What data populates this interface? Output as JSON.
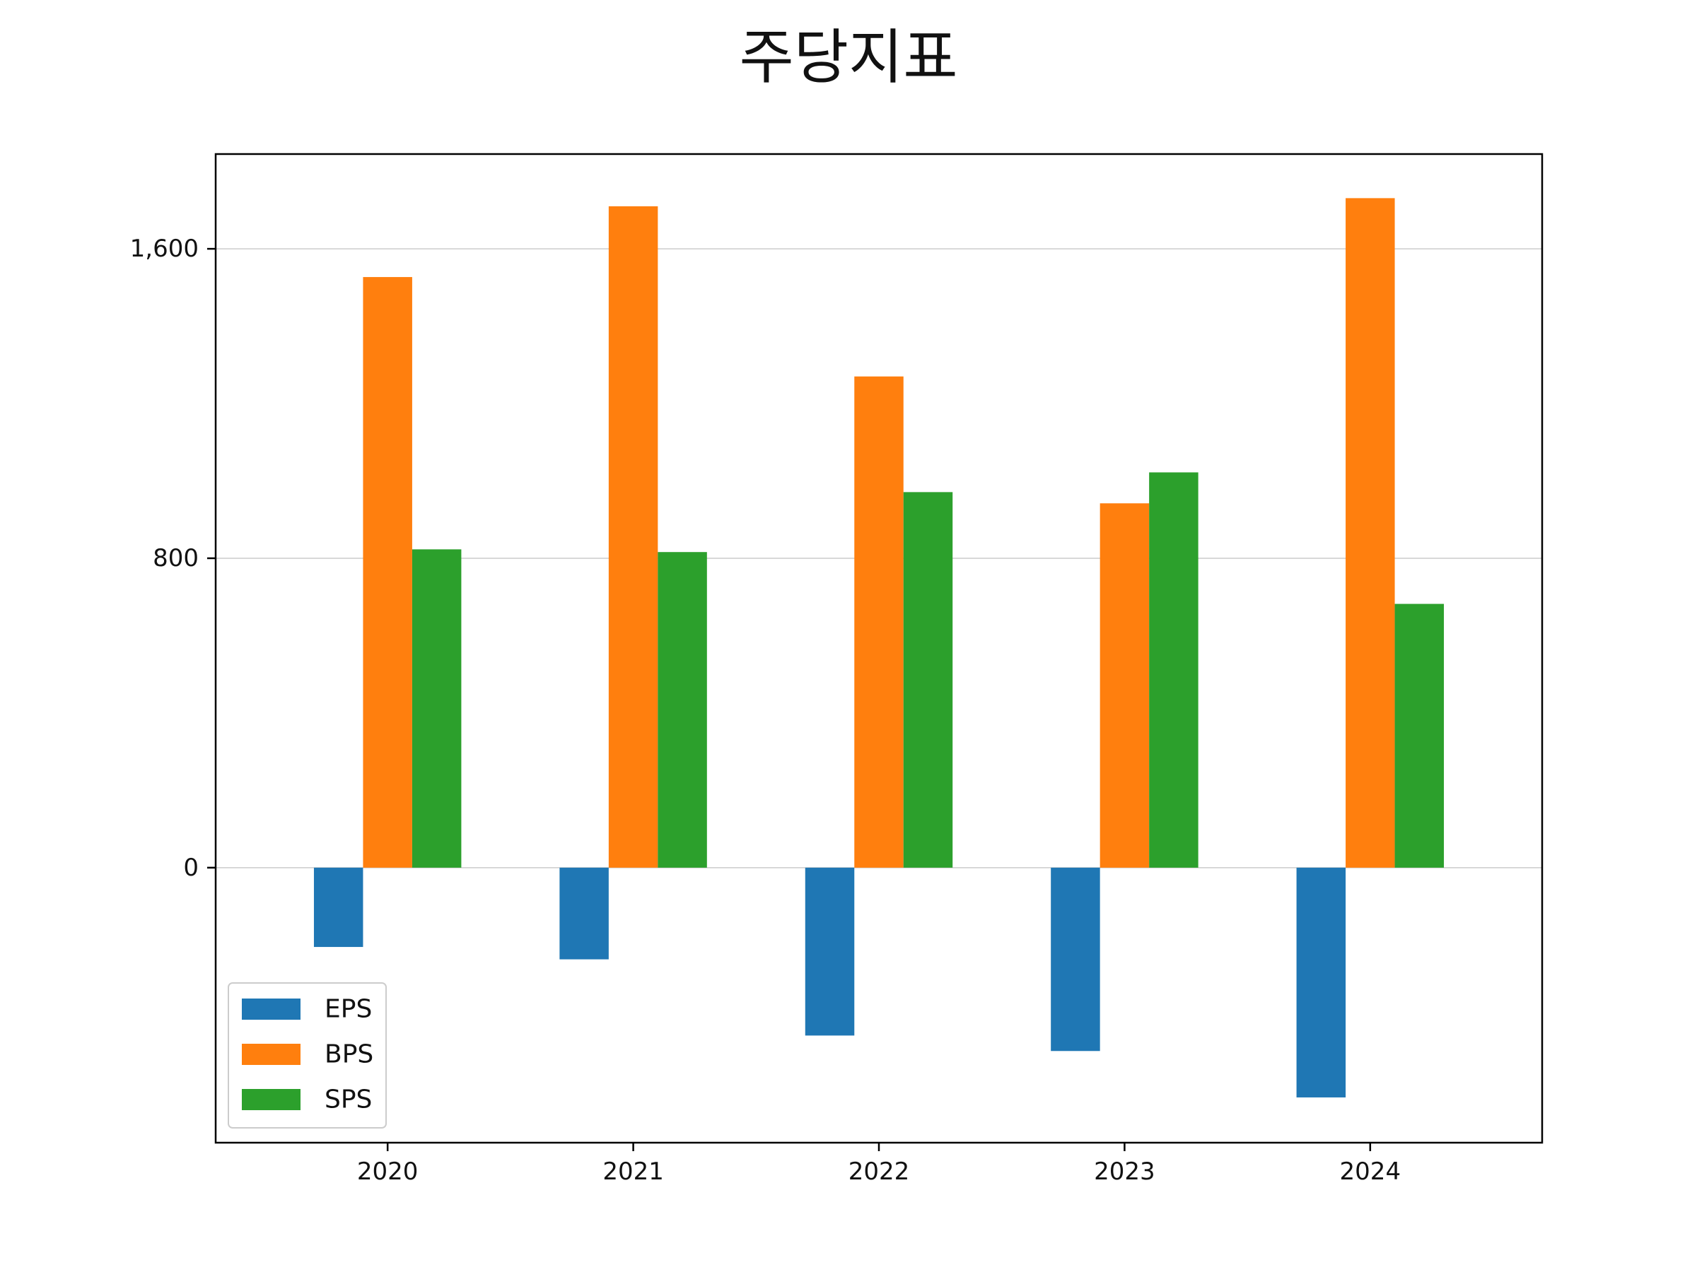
{
  "chart_data": {
    "type": "bar",
    "title": "주당지표",
    "xlabel": "",
    "ylabel": "",
    "categories": [
      "2020",
      "2021",
      "2022",
      "2023",
      "2024"
    ],
    "series": [
      {
        "name": "EPS",
        "color": "#1f77b4",
        "values": [
          -205,
          -237,
          -434,
          -474,
          -594
        ]
      },
      {
        "name": "BPS",
        "color": "#ff7f0e",
        "values": [
          1527,
          1710,
          1270,
          942,
          1731
        ]
      },
      {
        "name": "SPS",
        "color": "#2ca02c",
        "values": [
          823,
          816,
          971,
          1022,
          682
        ]
      }
    ],
    "yticks": [
      0,
      800,
      1600
    ],
    "ytick_labels": [
      "0",
      "800",
      "1,600"
    ],
    "ylim": [
      -711,
      1845
    ],
    "grid": "y",
    "legend_position": "lower-left"
  }
}
